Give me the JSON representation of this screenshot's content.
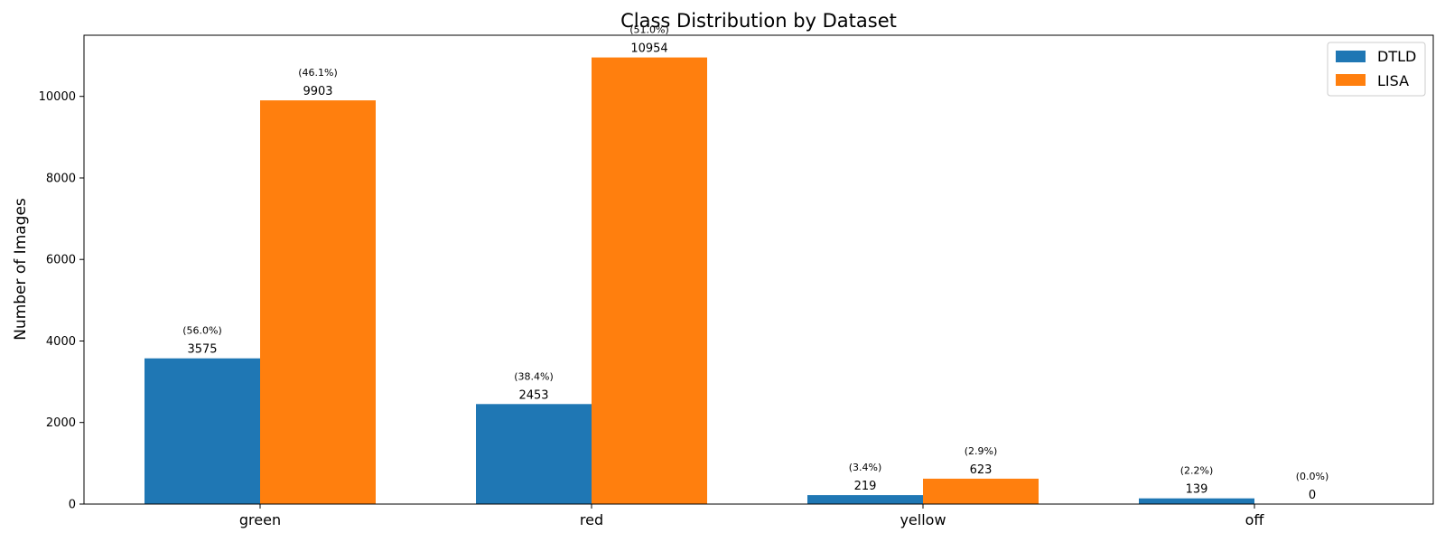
{
  "chart_data": {
    "type": "bar",
    "title": "Class Distribution by Dataset",
    "xlabel": "",
    "ylabel": "Number of Images",
    "ylim": [
      0,
      11500
    ],
    "yticks": [
      0,
      2000,
      4000,
      6000,
      8000,
      10000
    ],
    "categories": [
      "green",
      "red",
      "yellow",
      "off"
    ],
    "series": [
      {
        "name": "DTLD",
        "color": "#1f77b4",
        "values": [
          3575,
          2453,
          219,
          139
        ],
        "value_labels": [
          "3575",
          "2453",
          "219",
          "139"
        ],
        "percent_labels": [
          "(56.0%)",
          "(38.4%)",
          "(3.4%)",
          "(2.2%)"
        ]
      },
      {
        "name": "LISA",
        "color": "#ff7f0e",
        "values": [
          9903,
          10954,
          623,
          0
        ],
        "value_labels": [
          "9903",
          "10954",
          "623",
          "0"
        ],
        "percent_labels": [
          "(46.1%)",
          "(51.0%)",
          "(2.9%)",
          "(0.0%)"
        ]
      }
    ],
    "legend": {
      "placement": "top-right",
      "entries": [
        "DTLD",
        "LISA"
      ]
    },
    "grid": false
  }
}
